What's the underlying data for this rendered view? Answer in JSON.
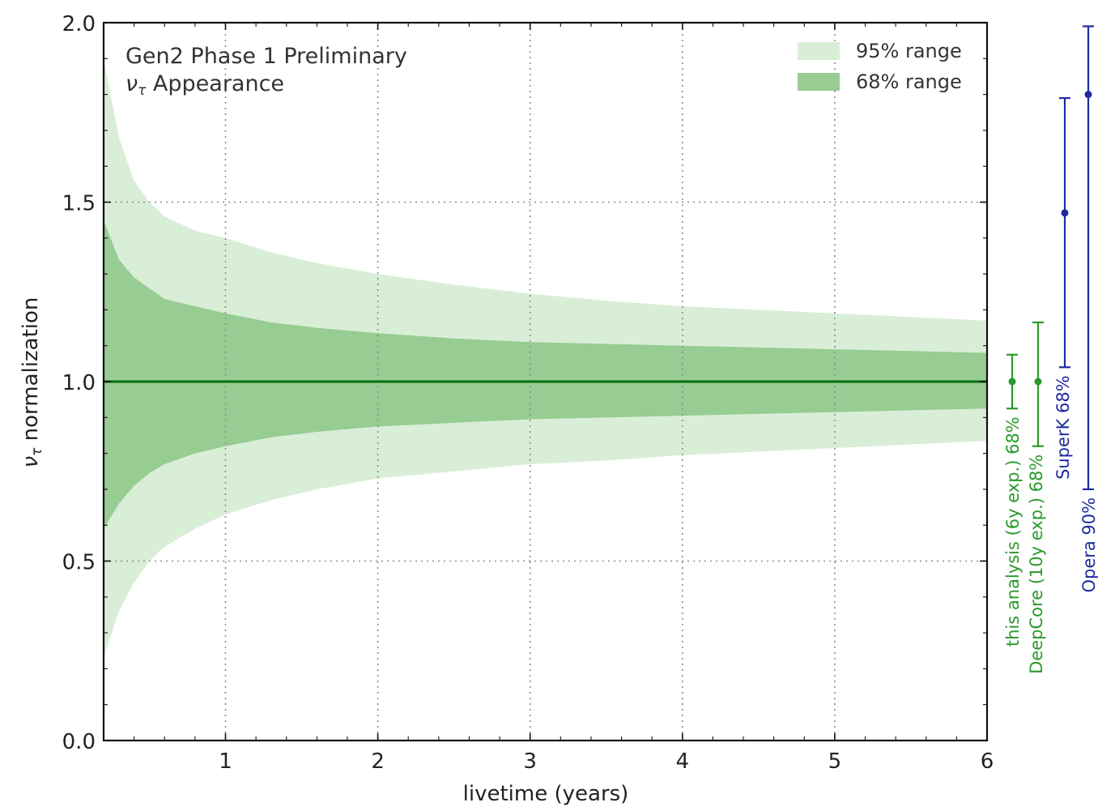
{
  "chart_data": {
    "type": "area",
    "xlabel": "livetime (years)",
    "ylabel": "ν",
    "ylabel_sub": "τ",
    "ylabel_rest": " normalization",
    "xlim": [
      0.2,
      6
    ],
    "ylim": [
      0,
      2
    ],
    "xticks": [
      1,
      2,
      3,
      4,
      5,
      6
    ],
    "yticks": [
      "0.0",
      "0.5",
      "1.0",
      "1.5",
      "2.0"
    ],
    "grid": true,
    "legend_position": "top-right",
    "annotations": {
      "line1": "Gen2 Phase 1 Preliminary",
      "line2_sym": "ν",
      "line2_sub": "τ",
      "line2_rest": " Appearance"
    },
    "series": [
      {
        "name": "95% range",
        "color": "#d9eed6",
        "x": [
          0.2,
          0.3,
          0.4,
          0.5,
          0.6,
          0.8,
          1.0,
          1.3,
          1.6,
          2.0,
          2.5,
          3.0,
          3.5,
          4.0,
          4.5,
          5.0,
          5.5,
          6.0
        ],
        "lower": [
          0.23,
          0.36,
          0.44,
          0.5,
          0.54,
          0.59,
          0.63,
          0.67,
          0.7,
          0.73,
          0.75,
          0.77,
          0.78,
          0.795,
          0.805,
          0.815,
          0.825,
          0.835
        ],
        "upper": [
          1.9,
          1.68,
          1.56,
          1.5,
          1.46,
          1.42,
          1.4,
          1.36,
          1.33,
          1.3,
          1.27,
          1.245,
          1.225,
          1.21,
          1.2,
          1.19,
          1.18,
          1.17
        ]
      },
      {
        "name": "68% range",
        "color": "#97cc92",
        "x": [
          0.2,
          0.3,
          0.4,
          0.5,
          0.6,
          0.8,
          1.0,
          1.3,
          1.6,
          2.0,
          2.5,
          3.0,
          3.5,
          4.0,
          4.5,
          5.0,
          5.5,
          6.0
        ],
        "lower": [
          0.59,
          0.66,
          0.71,
          0.745,
          0.77,
          0.8,
          0.82,
          0.845,
          0.86,
          0.875,
          0.885,
          0.895,
          0.9,
          0.905,
          0.91,
          0.915,
          0.92,
          0.925
        ],
        "upper": [
          1.45,
          1.34,
          1.29,
          1.26,
          1.23,
          1.21,
          1.19,
          1.165,
          1.15,
          1.135,
          1.12,
          1.11,
          1.105,
          1.1,
          1.095,
          1.09,
          1.085,
          1.08
        ]
      }
    ],
    "reference_line": {
      "y": 1.0,
      "color": "#0b6b12"
    },
    "external_measurements": [
      {
        "label": "this analysis (6y exp.) 68%",
        "center": 1.0,
        "low": 0.925,
        "high": 1.075,
        "color": "#2a9a2a"
      },
      {
        "label": "DeepCore (10y exp.) 68%",
        "center": 1.0,
        "low": 0.82,
        "high": 1.165,
        "color": "#2a9a2a"
      },
      {
        "label": "SuperK 68%",
        "center": 1.47,
        "low": 1.04,
        "high": 1.79,
        "color": "#1f2ba0"
      },
      {
        "label": "Opera 90%",
        "center": 1.8,
        "low": 0.7,
        "high": 1.99,
        "color": "#1f2ba0"
      }
    ]
  }
}
